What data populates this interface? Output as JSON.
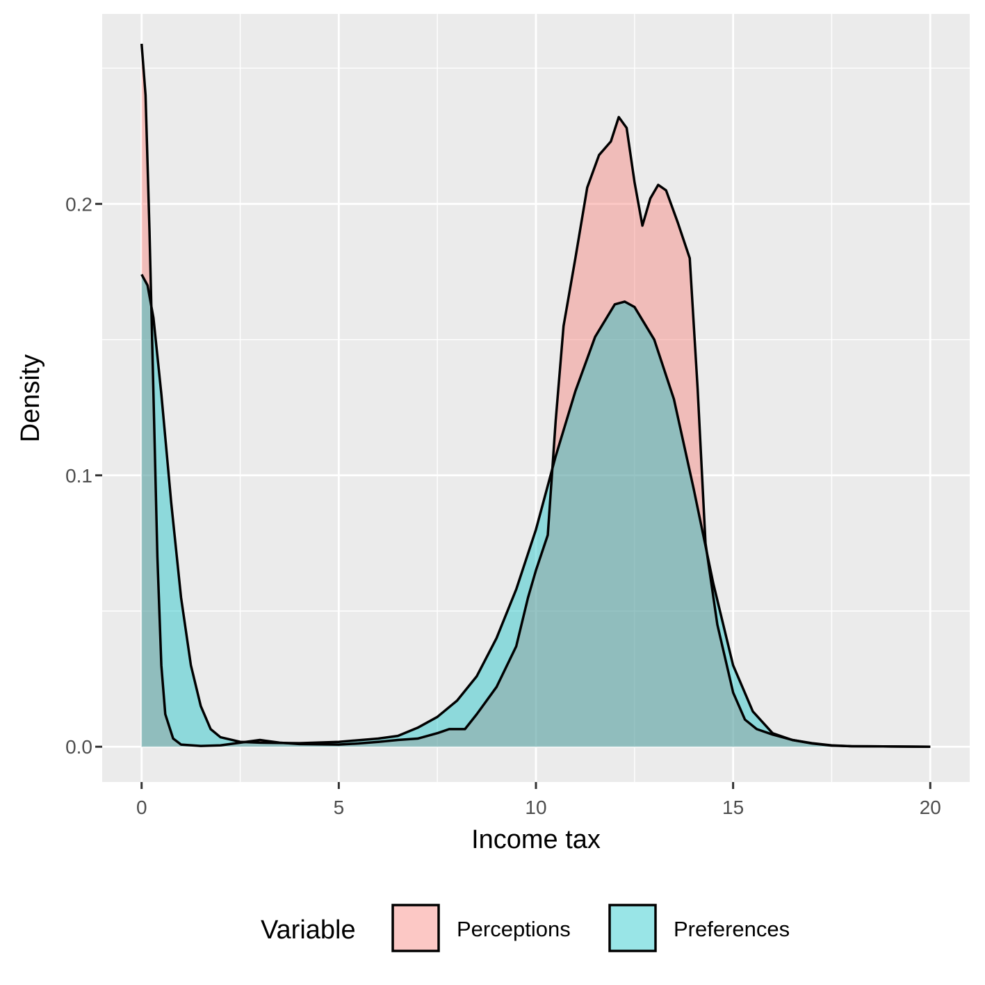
{
  "chart_data": {
    "type": "area",
    "xlabel": "Income tax",
    "ylabel": "Density",
    "xlim": [
      -1,
      21
    ],
    "ylim": [
      -0.013,
      0.27
    ],
    "x_ticks": [
      0,
      5,
      10,
      15,
      20
    ],
    "x_tick_labels": [
      "0",
      "5",
      "10",
      "15",
      "20"
    ],
    "y_ticks": [
      0.0,
      0.1,
      0.2
    ],
    "y_tick_labels": [
      "0.0",
      "0.1",
      "0.2"
    ],
    "grid": true,
    "legend": {
      "title": "Variable",
      "position": "bottom",
      "entries": [
        "Perceptions",
        "Preferences"
      ]
    },
    "series": [
      {
        "name": "Perceptions",
        "color": "#F8766D",
        "points": [
          [
            0.0,
            0.259
          ],
          [
            0.1,
            0.24
          ],
          [
            0.2,
            0.19
          ],
          [
            0.3,
            0.13
          ],
          [
            0.4,
            0.07
          ],
          [
            0.5,
            0.03
          ],
          [
            0.6,
            0.012
          ],
          [
            0.8,
            0.003
          ],
          [
            1.0,
            0.0008
          ],
          [
            1.5,
            0.0003
          ],
          [
            2.0,
            0.0005
          ],
          [
            2.5,
            0.0015
          ],
          [
            3.0,
            0.0025
          ],
          [
            3.5,
            0.0015
          ],
          [
            4.0,
            0.001
          ],
          [
            5.0,
            0.0008
          ],
          [
            5.5,
            0.0012
          ],
          [
            6.0,
            0.0018
          ],
          [
            6.5,
            0.0025
          ],
          [
            7.0,
            0.003
          ],
          [
            7.5,
            0.005
          ],
          [
            7.8,
            0.0065
          ],
          [
            8.2,
            0.0065
          ],
          [
            8.5,
            0.012
          ],
          [
            9.0,
            0.022
          ],
          [
            9.5,
            0.037
          ],
          [
            9.8,
            0.055
          ],
          [
            10.0,
            0.065
          ],
          [
            10.3,
            0.078
          ],
          [
            10.5,
            0.12
          ],
          [
            10.7,
            0.155
          ],
          [
            11.0,
            0.18
          ],
          [
            11.3,
            0.206
          ],
          [
            11.6,
            0.218
          ],
          [
            11.9,
            0.223
          ],
          [
            12.1,
            0.232
          ],
          [
            12.3,
            0.228
          ],
          [
            12.5,
            0.208
          ],
          [
            12.7,
            0.192
          ],
          [
            12.9,
            0.202
          ],
          [
            13.1,
            0.207
          ],
          [
            13.3,
            0.205
          ],
          [
            13.6,
            0.193
          ],
          [
            13.9,
            0.18
          ],
          [
            14.1,
            0.132
          ],
          [
            14.3,
            0.075
          ],
          [
            14.6,
            0.045
          ],
          [
            15.0,
            0.02
          ],
          [
            15.3,
            0.01
          ],
          [
            15.6,
            0.0065
          ],
          [
            16.0,
            0.0045
          ],
          [
            16.5,
            0.0025
          ],
          [
            17.0,
            0.0012
          ],
          [
            17.5,
            0.0004
          ],
          [
            18.0,
            0.0002
          ],
          [
            19.0,
            0.0001
          ],
          [
            20.0,
            0.0
          ]
        ]
      },
      {
        "name": "Preferences",
        "color": "#00BFC4",
        "points": [
          [
            0.0,
            0.174
          ],
          [
            0.15,
            0.17
          ],
          [
            0.3,
            0.158
          ],
          [
            0.5,
            0.13
          ],
          [
            0.75,
            0.09
          ],
          [
            1.0,
            0.055
          ],
          [
            1.25,
            0.03
          ],
          [
            1.5,
            0.015
          ],
          [
            1.75,
            0.0065
          ],
          [
            2.0,
            0.0035
          ],
          [
            2.5,
            0.0018
          ],
          [
            3.0,
            0.0015
          ],
          [
            4.0,
            0.0013
          ],
          [
            5.0,
            0.0018
          ],
          [
            6.0,
            0.003
          ],
          [
            6.5,
            0.004
          ],
          [
            7.0,
            0.007
          ],
          [
            7.5,
            0.011
          ],
          [
            8.0,
            0.017
          ],
          [
            8.5,
            0.026
          ],
          [
            9.0,
            0.04
          ],
          [
            9.5,
            0.058
          ],
          [
            10.0,
            0.08
          ],
          [
            10.5,
            0.107
          ],
          [
            11.0,
            0.131
          ],
          [
            11.5,
            0.151
          ],
          [
            12.0,
            0.163
          ],
          [
            12.25,
            0.164
          ],
          [
            12.5,
            0.162
          ],
          [
            13.0,
            0.15
          ],
          [
            13.5,
            0.128
          ],
          [
            14.0,
            0.095
          ],
          [
            14.5,
            0.06
          ],
          [
            15.0,
            0.03
          ],
          [
            15.5,
            0.013
          ],
          [
            16.0,
            0.005
          ],
          [
            16.5,
            0.0025
          ],
          [
            17.0,
            0.0013
          ],
          [
            17.5,
            0.0005
          ],
          [
            18.0,
            0.0002
          ],
          [
            19.0,
            0.0001
          ],
          [
            20.0,
            0.0
          ]
        ]
      }
    ]
  }
}
